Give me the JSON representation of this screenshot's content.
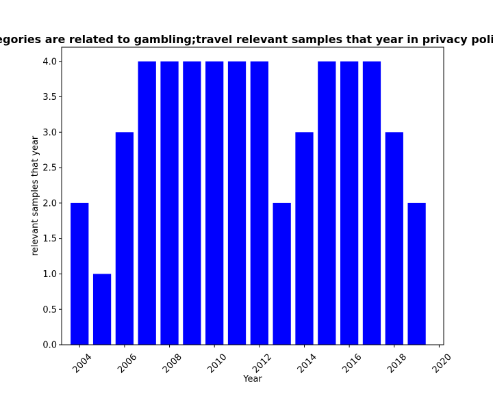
{
  "chart_data": {
    "type": "bar",
    "title": "Categories are related to gambling;travel relevant samples that year in privacy policies",
    "xlabel": "Year",
    "ylabel": "relevant samples that year",
    "categories": [
      2004,
      2005,
      2006,
      2007,
      2008,
      2009,
      2010,
      2011,
      2012,
      2013,
      2014,
      2015,
      2016,
      2017,
      2018,
      2019
    ],
    "values": [
      2,
      1,
      3,
      4,
      4,
      4,
      4,
      4,
      4,
      2,
      3,
      4,
      4,
      4,
      3,
      2
    ],
    "xlim": [
      2003.2,
      2020.2
    ],
    "ylim": [
      0,
      4.2
    ],
    "xticks": [
      2004,
      2006,
      2008,
      2010,
      2012,
      2014,
      2016,
      2018,
      2020
    ],
    "yticks": [
      0.0,
      0.5,
      1.0,
      1.5,
      2.0,
      2.5,
      3.0,
      3.5,
      4.0
    ],
    "bar_color": "#0000ff",
    "grid": false,
    "legend": "none"
  }
}
